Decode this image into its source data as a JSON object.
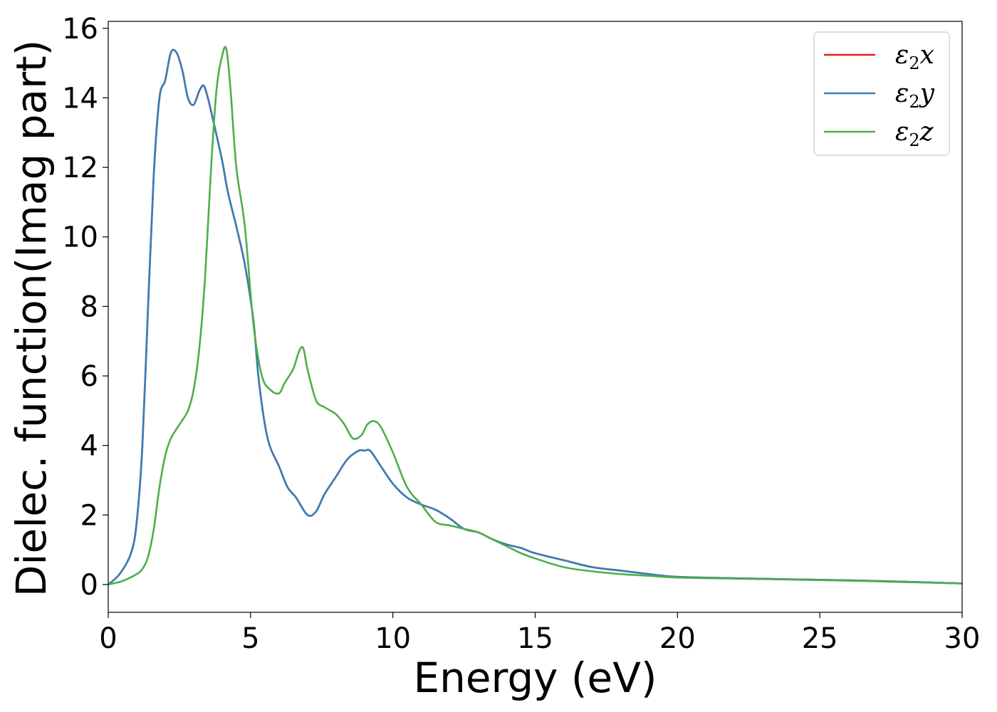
{
  "chart_data": {
    "type": "line",
    "title": "",
    "xlabel": "Energy (eV)",
    "ylabel": "Dielec. function(Imag part)",
    "xlim": [
      0,
      30
    ],
    "ylim": [
      -0.8,
      16.2
    ],
    "xticks": [
      0,
      5,
      10,
      15,
      20,
      25,
      30
    ],
    "yticks": [
      0,
      2,
      4,
      6,
      8,
      10,
      12,
      14,
      16
    ],
    "grid": false,
    "legend_position": "top-right",
    "series": [
      {
        "name": "ε2x",
        "symbol": "ε",
        "sub": "2",
        "suffix": "x",
        "color": "#e41a1c",
        "x": [
          0,
          0.4,
          0.8,
          1.0,
          1.2,
          1.4,
          1.6,
          1.8,
          2.0,
          2.2,
          2.4,
          2.6,
          2.8,
          3.0,
          3.2,
          3.35,
          3.5,
          3.7,
          4.0,
          4.2,
          4.5,
          4.8,
          5.1,
          5.3,
          5.6,
          6.0,
          6.3,
          6.6,
          7.0,
          7.3,
          7.6,
          8.0,
          8.4,
          8.8,
          9.0,
          9.2,
          9.5,
          10.0,
          10.5,
          11.0,
          11.5,
          12.0,
          12.5,
          13.0,
          13.5,
          14.0,
          14.5,
          15.0,
          16.0,
          17.0,
          18.0,
          19.0,
          20.0,
          22.0,
          24.0,
          26.0,
          28.0,
          30.0
        ],
        "y": [
          0,
          0.3,
          0.9,
          1.8,
          4.0,
          8.0,
          11.8,
          14.0,
          14.5,
          15.3,
          15.3,
          14.8,
          14.0,
          13.8,
          14.2,
          14.35,
          14.0,
          13.3,
          12.2,
          11.3,
          10.3,
          9.2,
          7.6,
          5.8,
          4.2,
          3.4,
          2.8,
          2.5,
          2.0,
          2.1,
          2.6,
          3.1,
          3.6,
          3.85,
          3.85,
          3.85,
          3.5,
          2.9,
          2.5,
          2.3,
          2.15,
          1.9,
          1.6,
          1.5,
          1.3,
          1.15,
          1.05,
          0.9,
          0.7,
          0.5,
          0.4,
          0.3,
          0.22,
          0.18,
          0.15,
          0.12,
          0.08,
          0.03
        ]
      },
      {
        "name": "ε2y",
        "symbol": "ε",
        "sub": "2",
        "suffix": "y",
        "color": "#377eb8",
        "x": [
          0,
          0.4,
          0.8,
          1.0,
          1.2,
          1.4,
          1.6,
          1.8,
          2.0,
          2.2,
          2.4,
          2.6,
          2.8,
          3.0,
          3.2,
          3.35,
          3.5,
          3.7,
          4.0,
          4.2,
          4.5,
          4.8,
          5.1,
          5.3,
          5.6,
          6.0,
          6.3,
          6.6,
          7.0,
          7.3,
          7.6,
          8.0,
          8.4,
          8.8,
          9.0,
          9.2,
          9.5,
          10.0,
          10.5,
          11.0,
          11.5,
          12.0,
          12.5,
          13.0,
          13.5,
          14.0,
          14.5,
          15.0,
          16.0,
          17.0,
          18.0,
          19.0,
          20.0,
          22.0,
          24.0,
          26.0,
          28.0,
          30.0
        ],
        "y": [
          0,
          0.3,
          0.9,
          1.8,
          4.0,
          8.0,
          11.8,
          14.0,
          14.5,
          15.3,
          15.3,
          14.8,
          14.0,
          13.8,
          14.2,
          14.35,
          14.0,
          13.3,
          12.2,
          11.3,
          10.3,
          9.2,
          7.6,
          5.8,
          4.2,
          3.4,
          2.8,
          2.5,
          2.0,
          2.1,
          2.6,
          3.1,
          3.6,
          3.85,
          3.85,
          3.85,
          3.5,
          2.9,
          2.5,
          2.3,
          2.15,
          1.9,
          1.6,
          1.5,
          1.3,
          1.15,
          1.05,
          0.9,
          0.7,
          0.5,
          0.4,
          0.3,
          0.22,
          0.18,
          0.15,
          0.12,
          0.08,
          0.03
        ]
      },
      {
        "name": "ε2z",
        "symbol": "ε",
        "sub": "2",
        "suffix": "z",
        "color": "#4daf4a",
        "x": [
          0,
          0.5,
          1.0,
          1.2,
          1.4,
          1.6,
          1.8,
          2.0,
          2.2,
          2.5,
          2.8,
          3.0,
          3.2,
          3.4,
          3.6,
          3.8,
          4.0,
          4.15,
          4.3,
          4.5,
          4.8,
          5.1,
          5.4,
          5.7,
          6.0,
          6.2,
          6.5,
          6.7,
          6.85,
          7.0,
          7.3,
          7.6,
          8.0,
          8.3,
          8.6,
          8.9,
          9.1,
          9.35,
          9.6,
          10.0,
          10.5,
          11.0,
          11.5,
          12.0,
          12.5,
          13.0,
          13.5,
          14.0,
          14.5,
          15.0,
          16.0,
          17.0,
          18.0,
          19.0,
          20.0,
          22.0,
          24.0,
          26.0,
          28.0,
          30.0
        ],
        "y": [
          0,
          0.1,
          0.3,
          0.45,
          0.8,
          1.6,
          2.8,
          3.7,
          4.2,
          4.6,
          5.0,
          5.6,
          6.8,
          8.8,
          11.8,
          14.2,
          15.2,
          15.4,
          14.2,
          12.0,
          10.3,
          7.5,
          6.0,
          5.6,
          5.5,
          5.8,
          6.2,
          6.7,
          6.8,
          6.2,
          5.3,
          5.1,
          4.9,
          4.6,
          4.2,
          4.3,
          4.6,
          4.7,
          4.5,
          3.8,
          2.8,
          2.3,
          1.8,
          1.7,
          1.6,
          1.5,
          1.3,
          1.1,
          0.9,
          0.75,
          0.5,
          0.38,
          0.3,
          0.25,
          0.2,
          0.17,
          0.14,
          0.11,
          0.07,
          0.03
        ]
      }
    ]
  }
}
